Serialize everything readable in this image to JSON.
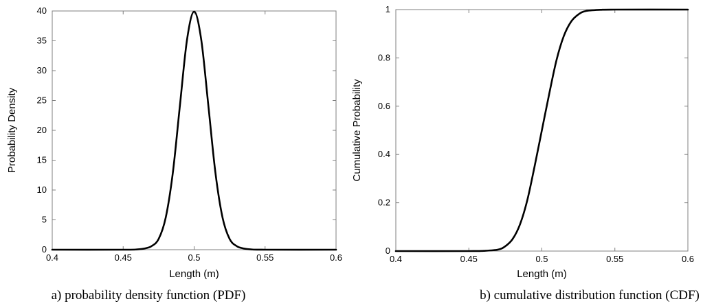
{
  "chart_data": [
    {
      "type": "line",
      "caption": "a) probability density function (PDF)",
      "xlabel": "Length (m)",
      "ylabel": "Probability Density",
      "xlim": [
        0.4,
        0.6
      ],
      "ylim": [
        0,
        40
      ],
      "xticks": [
        "0.4",
        "0.45",
        "0.5",
        "0.55",
        "0.6"
      ],
      "yticks": [
        "0",
        "5",
        "10",
        "15",
        "20",
        "25",
        "30",
        "35",
        "40"
      ],
      "grid": false,
      "series": [
        {
          "x": [
            0.4,
            0.45,
            0.46,
            0.465,
            0.47,
            0.475,
            0.48,
            0.485,
            0.49,
            0.495,
            0.5,
            0.505,
            0.51,
            0.515,
            0.52,
            0.525,
            0.53,
            0.535,
            0.54,
            0.55,
            0.6
          ],
          "y": [
            0,
            0,
            0.05,
            0.2,
            0.6,
            1.8,
            5.4,
            12.9,
            24.2,
            35.2,
            39.9,
            35.2,
            24.2,
            12.9,
            5.4,
            1.8,
            0.6,
            0.2,
            0.05,
            0,
            0
          ]
        }
      ]
    },
    {
      "type": "line",
      "caption": "b) cumulative distribution function (CDF)",
      "xlabel": "Length (m)",
      "ylabel": "Cumulative Probability",
      "xlim": [
        0.4,
        0.6
      ],
      "ylim": [
        0,
        1
      ],
      "xticks": [
        "0.4",
        "0.45",
        "0.5",
        "0.55",
        "0.6"
      ],
      "yticks": [
        "0",
        "0.2",
        "0.4",
        "0.6",
        "0.8",
        "1"
      ],
      "grid": false,
      "series": [
        {
          "x": [
            0.4,
            0.45,
            0.46,
            0.47,
            0.475,
            0.48,
            0.485,
            0.49,
            0.495,
            0.5,
            0.505,
            0.51,
            0.515,
            0.52,
            0.525,
            0.53,
            0.54,
            0.55,
            0.6
          ],
          "y": [
            0,
            0,
            0.001,
            0.006,
            0.02,
            0.05,
            0.11,
            0.21,
            0.35,
            0.5,
            0.65,
            0.79,
            0.89,
            0.95,
            0.98,
            0.994,
            0.999,
            1,
            1
          ]
        }
      ]
    }
  ]
}
